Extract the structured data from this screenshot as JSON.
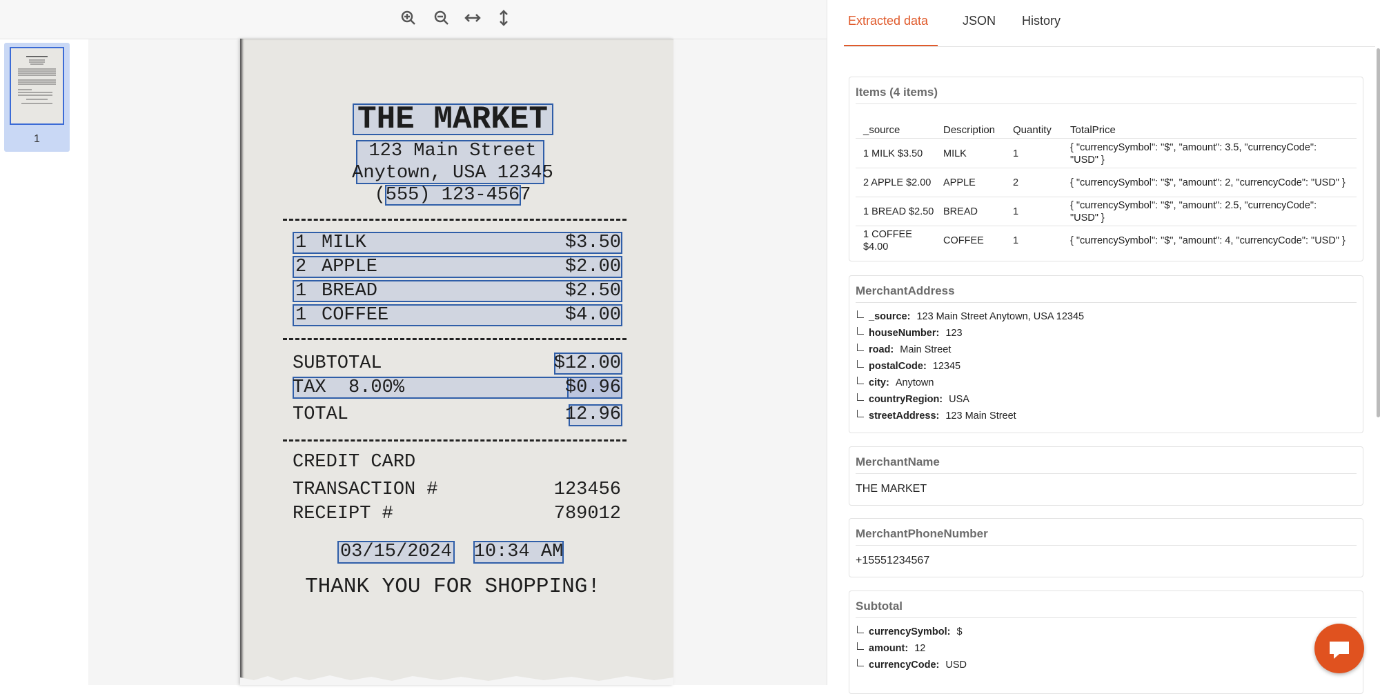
{
  "viewer": {
    "page_number": "1",
    "receipt": {
      "merchant": "THE MARKET",
      "address_lines": [
        "123 Main Street",
        "Anytown, USA 12345"
      ],
      "phone": "(555) 123-4567",
      "items": [
        [
          "1",
          "MILK",
          "$3.50"
        ],
        [
          "2",
          "APPLE",
          "$2.00"
        ],
        [
          "1",
          "BREAD",
          "$2.50"
        ],
        [
          "1",
          "COFFEE",
          "$4.00"
        ]
      ],
      "subtotal_label": "SUBTOTAL",
      "subtotal": "$12.00",
      "tax_label": "TAX  8.00%",
      "tax": "$0.96",
      "total_label": "TOTAL",
      "total": "12.96",
      "payment": "CREDIT CARD",
      "transaction_label": "TRANSACTION #",
      "transaction": "123456",
      "receipt_label": "RECEIPT #",
      "receipt_number": "789012",
      "date": "03/15/2024",
      "time": "10:34 AM",
      "footer": "THANK YOU FOR SHOPPING!"
    }
  },
  "panel": {
    "tabs": [
      "Extracted data",
      "JSON",
      "History"
    ],
    "items": {
      "title": "Items (4 items)",
      "columns": [
        "_source",
        "Description",
        "Quantity",
        "TotalPrice"
      ],
      "rows": [
        [
          "1 MILK $3.50",
          "MILK",
          "1",
          "{ \"currencySymbol\": \"$\", \"amount\": 3.5, \"currencyCode\": \"USD\" }"
        ],
        [
          "2 APPLE $2.00",
          "APPLE",
          "2",
          "{ \"currencySymbol\": \"$\", \"amount\": 2, \"currencyCode\": \"USD\" }"
        ],
        [
          "1 BREAD $2.50",
          "BREAD",
          "1",
          "{ \"currencySymbol\": \"$\", \"amount\": 2.5, \"currencyCode\": \"USD\" }"
        ],
        [
          "1 COFFEE $4.00",
          "COFFEE",
          "1",
          "{ \"currencySymbol\": \"$\", \"amount\": 4, \"currencyCode\": \"USD\" }"
        ]
      ]
    },
    "merchant_address": {
      "title": "MerchantAddress",
      "fields": [
        [
          "_source:",
          "123 Main Street Anytown, USA 12345"
        ],
        [
          "houseNumber:",
          "123"
        ],
        [
          "road:",
          "Main Street"
        ],
        [
          "postalCode:",
          "12345"
        ],
        [
          "city:",
          "Anytown"
        ],
        [
          "countryRegion:",
          "USA"
        ],
        [
          "streetAddress:",
          "123 Main Street"
        ]
      ]
    },
    "merchant_name": {
      "title": "MerchantName",
      "value": "THE MARKET"
    },
    "merchant_phone": {
      "title": "MerchantPhoneNumber",
      "value": "+15551234567"
    },
    "subtotal": {
      "title": "Subtotal",
      "fields": [
        [
          "currencySymbol:",
          "$"
        ],
        [
          "amount:",
          "12"
        ],
        [
          "currencyCode:",
          "USD"
        ]
      ]
    }
  }
}
